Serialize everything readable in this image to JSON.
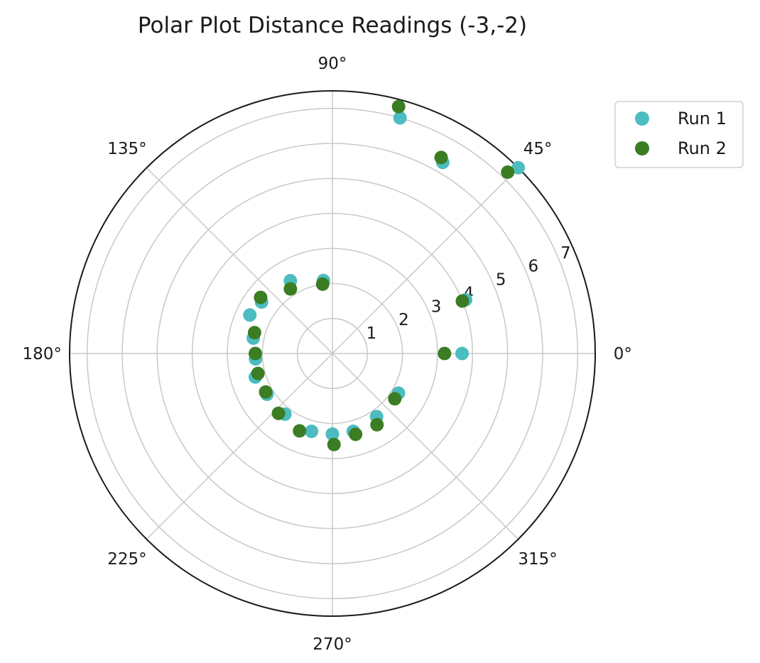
{
  "chart_data": {
    "type": "scatter",
    "subtype": "polar",
    "title": "Polar Plot Distance Readings (-3,-2)",
    "angle_unit": "degrees",
    "theta_ticks": [
      0,
      45,
      90,
      135,
      180,
      225,
      270,
      315
    ],
    "theta_tick_labels": [
      "0°",
      "45°",
      "90°",
      "135°",
      "180°",
      "225°",
      "270°",
      "315°"
    ],
    "r_ticks": [
      1,
      2,
      3,
      4,
      5,
      6,
      7
    ],
    "r_tick_labels": [
      "1",
      "2",
      "3",
      "4",
      "5",
      "6",
      "7"
    ],
    "r_tick_label_angle_deg": 22.5,
    "rlim": [
      0,
      7.5
    ],
    "grid": true,
    "legend_position": "upper-right-outside",
    "series": [
      {
        "name": "Run 1",
        "color": "#4cbcc0",
        "points": [
          {
            "theta": 0,
            "r": 3.7
          },
          {
            "theta": 22,
            "r": 4.1
          },
          {
            "theta": 45,
            "r": 7.5
          },
          {
            "theta": 60,
            "r": 6.3
          },
          {
            "theta": 74,
            "r": 7.0
          },
          {
            "theta": 97,
            "r": 2.1
          },
          {
            "theta": 120,
            "r": 2.4
          },
          {
            "theta": 144,
            "r": 2.5
          },
          {
            "theta": 155,
            "r": 2.6
          },
          {
            "theta": 169,
            "r": 2.3
          },
          {
            "theta": 184,
            "r": 2.2
          },
          {
            "theta": 197,
            "r": 2.3
          },
          {
            "theta": 212,
            "r": 2.2
          },
          {
            "theta": 232,
            "r": 2.2
          },
          {
            "theta": 255,
            "r": 2.3
          },
          {
            "theta": 270,
            "r": 2.3
          },
          {
            "theta": 285,
            "r": 2.3
          },
          {
            "theta": 305,
            "r": 2.2
          },
          {
            "theta": 329,
            "r": 2.2
          }
        ]
      },
      {
        "name": "Run 2",
        "color": "#3a7d22",
        "points": [
          {
            "theta": 0,
            "r": 3.2
          },
          {
            "theta": 22,
            "r": 4.0
          },
          {
            "theta": 46,
            "r": 7.2
          },
          {
            "theta": 61,
            "r": 6.4
          },
          {
            "theta": 75,
            "r": 7.3
          },
          {
            "theta": 98,
            "r": 2.0
          },
          {
            "theta": 123,
            "r": 2.2
          },
          {
            "theta": 142,
            "r": 2.6
          },
          {
            "theta": 165,
            "r": 2.3
          },
          {
            "theta": 180,
            "r": 2.2
          },
          {
            "theta": 195,
            "r": 2.2
          },
          {
            "theta": 210,
            "r": 2.2
          },
          {
            "theta": 228,
            "r": 2.3
          },
          {
            "theta": 247,
            "r": 2.4
          },
          {
            "theta": 271,
            "r": 2.6
          },
          {
            "theta": 286,
            "r": 2.4
          },
          {
            "theta": 302,
            "r": 2.4
          },
          {
            "theta": 324,
            "r": 2.2
          }
        ]
      }
    ]
  }
}
